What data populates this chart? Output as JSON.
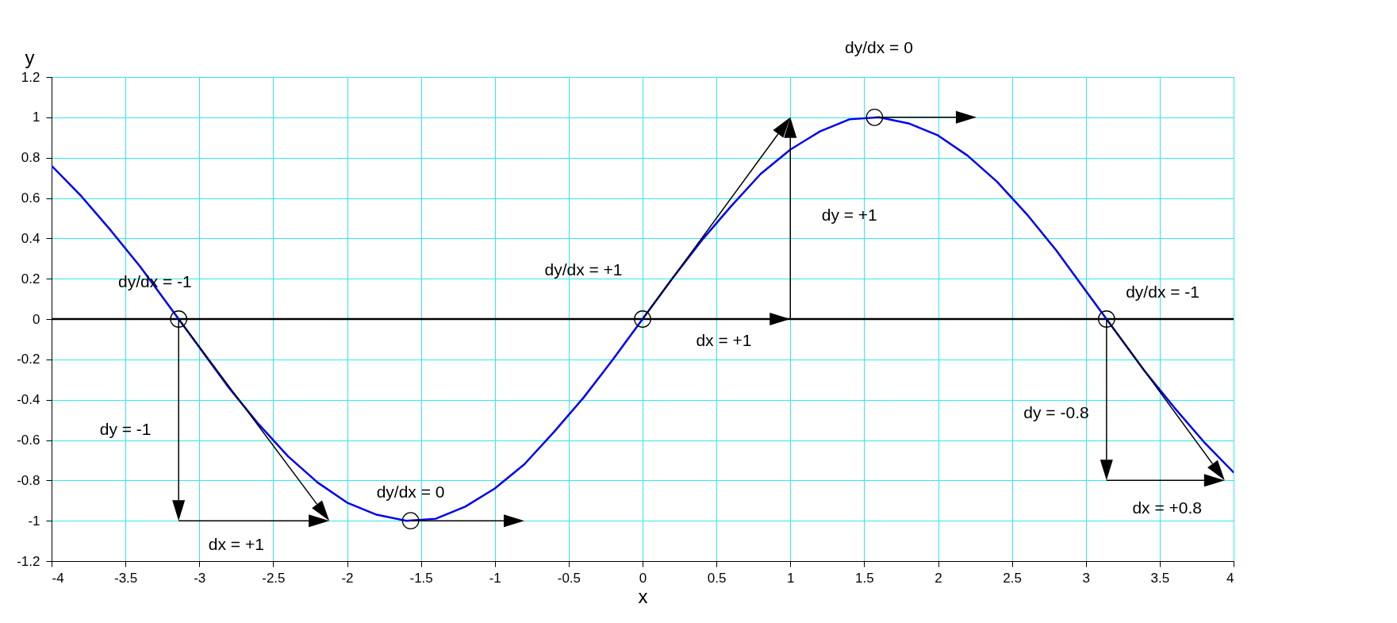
{
  "chart_data": {
    "type": "line",
    "xlabel": "x",
    "ylabel": "y",
    "xlim": [
      -4,
      4
    ],
    "ylim": [
      -1.2,
      1.2
    ],
    "xticks": [
      -4,
      -3.5,
      -3,
      -2.5,
      -2,
      -1.5,
      -1,
      -0.5,
      0,
      0.5,
      1,
      1.5,
      2,
      2.5,
      3,
      3.5,
      4
    ],
    "yticks": [
      -1.2,
      -1,
      -0.8,
      -0.6,
      -0.4,
      -0.2,
      0,
      0.2,
      0.4,
      0.6,
      0.8,
      1,
      1.2
    ],
    "grid": true,
    "line_style": "solid",
    "ref_lines": [
      {
        "axis": "y",
        "value": 0,
        "label": null,
        "color": "#000000"
      }
    ],
    "series": [
      {
        "color": "#0000ee",
        "x": [
          -4,
          -3.8,
          -3.6,
          -3.4,
          -3.2,
          -3,
          -2.8,
          -2.6,
          -2.4,
          -2.2,
          -2,
          -1.8,
          -1.6,
          -1.4,
          -1.2,
          -1,
          -0.8,
          -0.6,
          -0.4,
          -0.2,
          0,
          0.2,
          0.4,
          0.6,
          0.8,
          1,
          1.2,
          1.4,
          1.6,
          1.8,
          2,
          2.2,
          2.4,
          2.6,
          2.8,
          3,
          3.2,
          3.4,
          3.6,
          3.8,
          4
        ],
        "values": [
          0.76,
          0.61,
          0.44,
          0.26,
          0.06,
          -0.14,
          -0.34,
          -0.52,
          -0.68,
          -0.81,
          -0.91,
          -0.97,
          -1,
          -0.99,
          -0.93,
          -0.84,
          -0.72,
          -0.56,
          -0.39,
          -0.2,
          0,
          0.2,
          0.39,
          0.56,
          0.72,
          0.84,
          0.93,
          0.99,
          1,
          0.97,
          0.91,
          0.81,
          0.68,
          0.52,
          0.34,
          0.14,
          -0.06,
          -0.26,
          -0.44,
          -0.61,
          -0.76
        ]
      },
      {
        "type": "scatter",
        "color": "#000000",
        "x": [
          -3.14,
          -1.57,
          0,
          1.57,
          3.14
        ],
        "values": [
          0,
          -1,
          0,
          1,
          0
        ]
      }
    ],
    "annotations": [
      "dy/dx = -1",
      "dy = -1",
      "dx = +1",
      "dy/dx = 0",
      "dy/dx = +1",
      "dx = +1",
      "dy = +1",
      "dy/dx = 0",
      "dy/dx = -1",
      "dy = -0.8",
      "dx = +0.8"
    ]
  }
}
